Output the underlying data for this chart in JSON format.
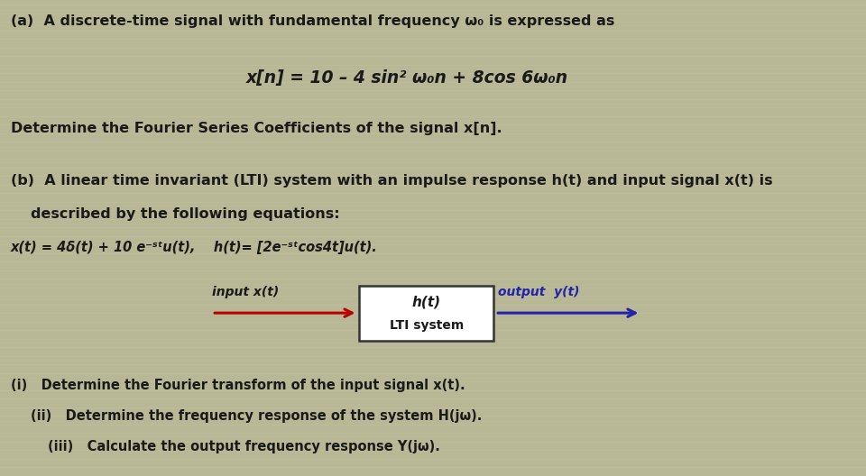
{
  "bg_color": "#b8b896",
  "text_color": "#1a1a1a",
  "red_color": "#bb0000",
  "blue_color": "#2222aa",
  "fig_width": 9.6,
  "fig_height": 5.28,
  "part_a_label": "(a)  A discrete-time signal with fundamental frequency ω₀ is expressed as",
  "part_a_eq": "x[n] = 10 – 4 sin² ω₀n + 8cos 6ω₀n",
  "part_a_sub": "Determine the Fourier Series Coefficients of the signal x[n].",
  "part_b_label": "(b)  A linear time invariant (LTI) system with an impulse response h(t) and input signal x(t) is",
  "part_b_label2": "described by the following equations:",
  "part_b_eq": "x(t) = 4δ(t) + 10 e⁻ˢᵗu(t),    h(t)= [2e⁻ˢᵗcos4t]u(t).",
  "input_label": "input x(t)",
  "box_label1": "h(t)",
  "box_label2": "LTI system",
  "output_label": "output  y(t)",
  "sub_i": "(i)   Determine the Fourier transform of the input signal x(t).",
  "sub_ii": "(ii)   Determine the frequency response of the system H(jω).",
  "sub_iii": "(iii)   Calculate the output frequency response Y(jω)."
}
